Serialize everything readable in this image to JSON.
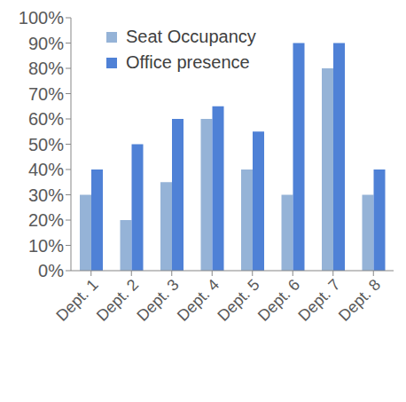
{
  "chart_data": {
    "type": "bar",
    "categories": [
      "Dept. 1",
      "Dept. 2",
      "Dept. 3",
      "Dept. 4",
      "Dept. 5",
      "Dept. 6",
      "Dept. 7",
      "Dept. 8"
    ],
    "series": [
      {
        "name": "Seat Occupancy",
        "color": "#95b3d7",
        "values": [
          30,
          20,
          35,
          60,
          40,
          30,
          80,
          30
        ]
      },
      {
        "name": "Office presence",
        "color": "#4f81d6",
        "values": [
          40,
          50,
          60,
          65,
          55,
          90,
          90,
          40
        ]
      }
    ],
    "ylim": [
      0,
      100
    ],
    "yticks": [
      {
        "value": 0,
        "label": "0%"
      },
      {
        "value": 10,
        "label": "10%"
      },
      {
        "value": 20,
        "label": "20%"
      },
      {
        "value": 30,
        "label": "30%"
      },
      {
        "value": 40,
        "label": "40%"
      },
      {
        "value": 50,
        "label": "50%"
      },
      {
        "value": 60,
        "label": "60%"
      },
      {
        "value": 70,
        "label": "70%"
      },
      {
        "value": 80,
        "label": "80%"
      },
      {
        "value": 90,
        "label": "90%"
      },
      {
        "value": 100,
        "label": "100%"
      }
    ],
    "grid": false,
    "legend": "top-left"
  }
}
